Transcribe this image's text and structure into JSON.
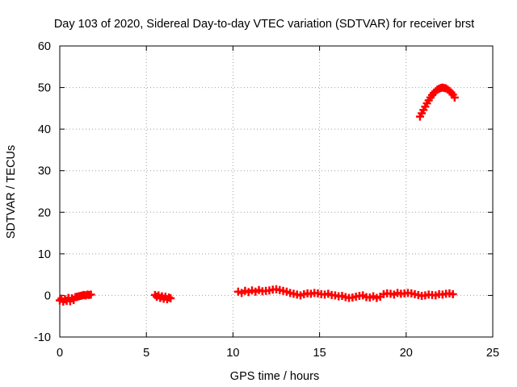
{
  "chart_data": {
    "type": "scatter",
    "title": "Day 103 of 2020, Sidereal Day-to-day VTEC variation (SDTVAR) for receiver brst",
    "xlabel": "GPS time / hours",
    "ylabel": "SDTVAR / TECUs",
    "xlim": [
      0,
      25
    ],
    "ylim": [
      -10,
      60
    ],
    "xticks": [
      0,
      5,
      10,
      15,
      20,
      25
    ],
    "yticks": [
      -10,
      0,
      10,
      20,
      30,
      40,
      50,
      60
    ],
    "grid": true,
    "marker": "plus",
    "series": [
      {
        "name": "SDTVAR",
        "color": "#ff0000",
        "points": [
          [
            0.0,
            -1.2
          ],
          [
            0.1,
            -0.8
          ],
          [
            0.2,
            -1.5
          ],
          [
            0.3,
            -0.9
          ],
          [
            0.4,
            -1.3
          ],
          [
            0.5,
            -0.6
          ],
          [
            0.6,
            -1.4
          ],
          [
            0.7,
            -0.7
          ],
          [
            0.8,
            -1.1
          ],
          [
            0.9,
            -0.4
          ],
          [
            1.0,
            -0.3
          ],
          [
            1.1,
            -0.2
          ],
          [
            1.2,
            -0.1
          ],
          [
            1.3,
            0.0
          ],
          [
            1.4,
            0.1
          ],
          [
            1.5,
            0.0
          ],
          [
            1.6,
            0.2
          ],
          [
            1.7,
            0.1
          ],
          [
            1.8,
            0.2
          ],
          [
            5.5,
            0.1
          ],
          [
            5.6,
            -0.3
          ],
          [
            5.7,
            0.0
          ],
          [
            5.8,
            -0.6
          ],
          [
            5.9,
            -0.2
          ],
          [
            6.0,
            -0.8
          ],
          [
            6.1,
            -0.3
          ],
          [
            6.2,
            -0.9
          ],
          [
            6.3,
            -0.5
          ],
          [
            6.4,
            -0.7
          ],
          [
            10.3,
            0.9
          ],
          [
            10.5,
            0.6
          ],
          [
            10.7,
            1.1
          ],
          [
            10.9,
            0.8
          ],
          [
            11.1,
            1.2
          ],
          [
            11.3,
            0.9
          ],
          [
            11.5,
            1.3
          ],
          [
            11.7,
            1.0
          ],
          [
            11.9,
            1.1
          ],
          [
            12.1,
            1.2
          ],
          [
            12.3,
            1.4
          ],
          [
            12.5,
            1.5
          ],
          [
            12.7,
            1.3
          ],
          [
            12.9,
            1.1
          ],
          [
            13.1,
            0.9
          ],
          [
            13.3,
            0.6
          ],
          [
            13.5,
            0.4
          ],
          [
            13.7,
            0.2
          ],
          [
            13.9,
            0.0
          ],
          [
            14.1,
            0.3
          ],
          [
            14.3,
            0.5
          ],
          [
            14.5,
            0.4
          ],
          [
            14.7,
            0.6
          ],
          [
            14.9,
            0.5
          ],
          [
            15.1,
            0.3
          ],
          [
            15.3,
            0.2
          ],
          [
            15.5,
            0.4
          ],
          [
            15.7,
            0.1
          ],
          [
            15.9,
            0.0
          ],
          [
            16.1,
            -0.2
          ],
          [
            16.3,
            -0.1
          ],
          [
            16.5,
            -0.4
          ],
          [
            16.7,
            -0.6
          ],
          [
            16.9,
            -0.5
          ],
          [
            17.1,
            -0.3
          ],
          [
            17.3,
            -0.1
          ],
          [
            17.5,
            0.0
          ],
          [
            17.7,
            -0.4
          ],
          [
            17.9,
            -0.5
          ],
          [
            18.1,
            -0.2
          ],
          [
            18.3,
            -0.6
          ],
          [
            18.5,
            -0.3
          ],
          [
            18.7,
            0.3
          ],
          [
            18.9,
            0.5
          ],
          [
            19.1,
            0.4
          ],
          [
            19.3,
            0.2
          ],
          [
            19.5,
            0.6
          ],
          [
            19.7,
            0.4
          ],
          [
            19.9,
            0.5
          ],
          [
            20.1,
            0.6
          ],
          [
            20.3,
            0.5
          ],
          [
            20.5,
            0.3
          ],
          [
            20.7,
            0.1
          ],
          [
            20.9,
            -0.1
          ],
          [
            21.1,
            0.0
          ],
          [
            21.3,
            0.2
          ],
          [
            21.5,
            0.1
          ],
          [
            21.7,
            0.0
          ],
          [
            21.9,
            0.3
          ],
          [
            22.1,
            0.2
          ],
          [
            22.3,
            0.4
          ],
          [
            22.5,
            0.5
          ],
          [
            22.7,
            0.3
          ],
          [
            20.8,
            43.0
          ],
          [
            20.9,
            43.8
          ],
          [
            21.0,
            44.6
          ],
          [
            21.1,
            45.4
          ],
          [
            21.2,
            46.2
          ],
          [
            21.3,
            46.9
          ],
          [
            21.4,
            47.6
          ],
          [
            21.5,
            48.2
          ],
          [
            21.6,
            48.7
          ],
          [
            21.7,
            49.1
          ],
          [
            21.8,
            49.5
          ],
          [
            21.9,
            49.7
          ],
          [
            22.0,
            49.9
          ],
          [
            22.1,
            50.0
          ],
          [
            22.2,
            49.9
          ],
          [
            22.3,
            49.8
          ],
          [
            22.4,
            49.5
          ],
          [
            22.5,
            49.2
          ],
          [
            22.6,
            48.8
          ],
          [
            22.7,
            48.3
          ],
          [
            22.8,
            47.6
          ]
        ]
      }
    ]
  }
}
